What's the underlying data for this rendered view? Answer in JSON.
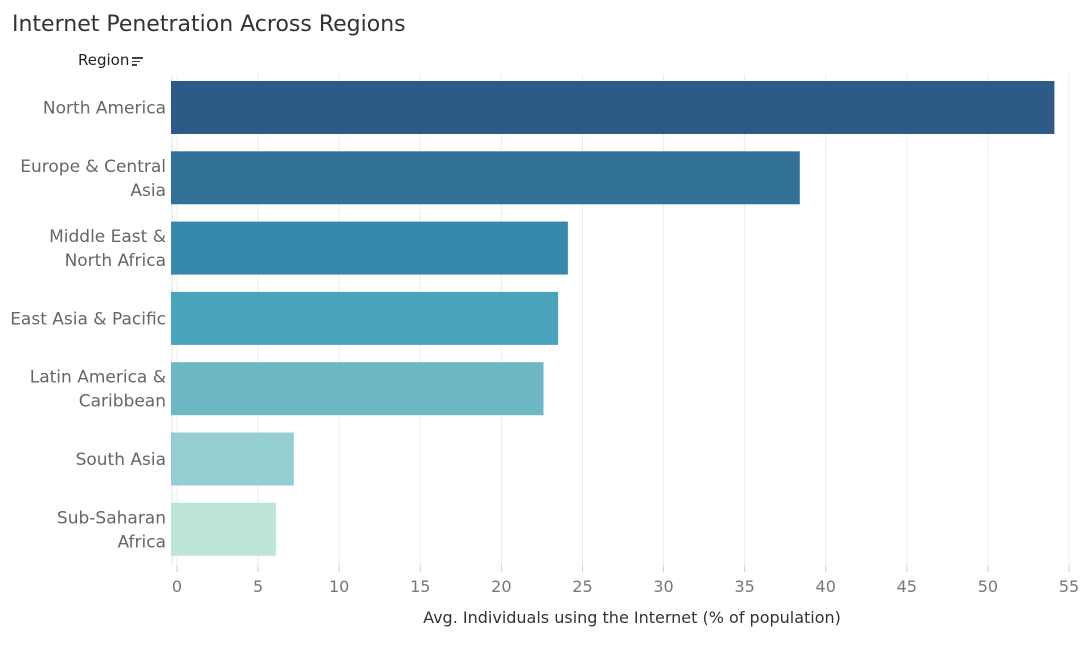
{
  "chart_data": {
    "type": "bar",
    "orientation": "horizontal",
    "title": "Internet Penetration Across Regions",
    "category_header": "Region",
    "xlabel": "Avg. Individuals using the Internet (% of population)",
    "categories": [
      [
        "North America"
      ],
      [
        "Europe & Central",
        "Asia"
      ],
      [
        "Middle East &",
        "North Africa"
      ],
      [
        "East Asia & Pacific"
      ],
      [
        "Latin America &",
        "Caribbean"
      ],
      [
        "South Asia"
      ],
      [
        "Sub-Saharan",
        "Africa"
      ]
    ],
    "values": [
      54.1,
      38.4,
      24.1,
      23.5,
      22.6,
      7.2,
      6.1
    ],
    "colors": [
      "#2e5a87",
      "#327298",
      "#3689aa",
      "#49a3bd",
      "#6eb7c5",
      "#95ced0",
      "#bde6d9"
    ],
    "xlim": [
      0,
      55
    ],
    "xticks": [
      0,
      5,
      10,
      15,
      20,
      25,
      30,
      35,
      40,
      45,
      50,
      55
    ],
    "grid": true,
    "legend": "none"
  }
}
